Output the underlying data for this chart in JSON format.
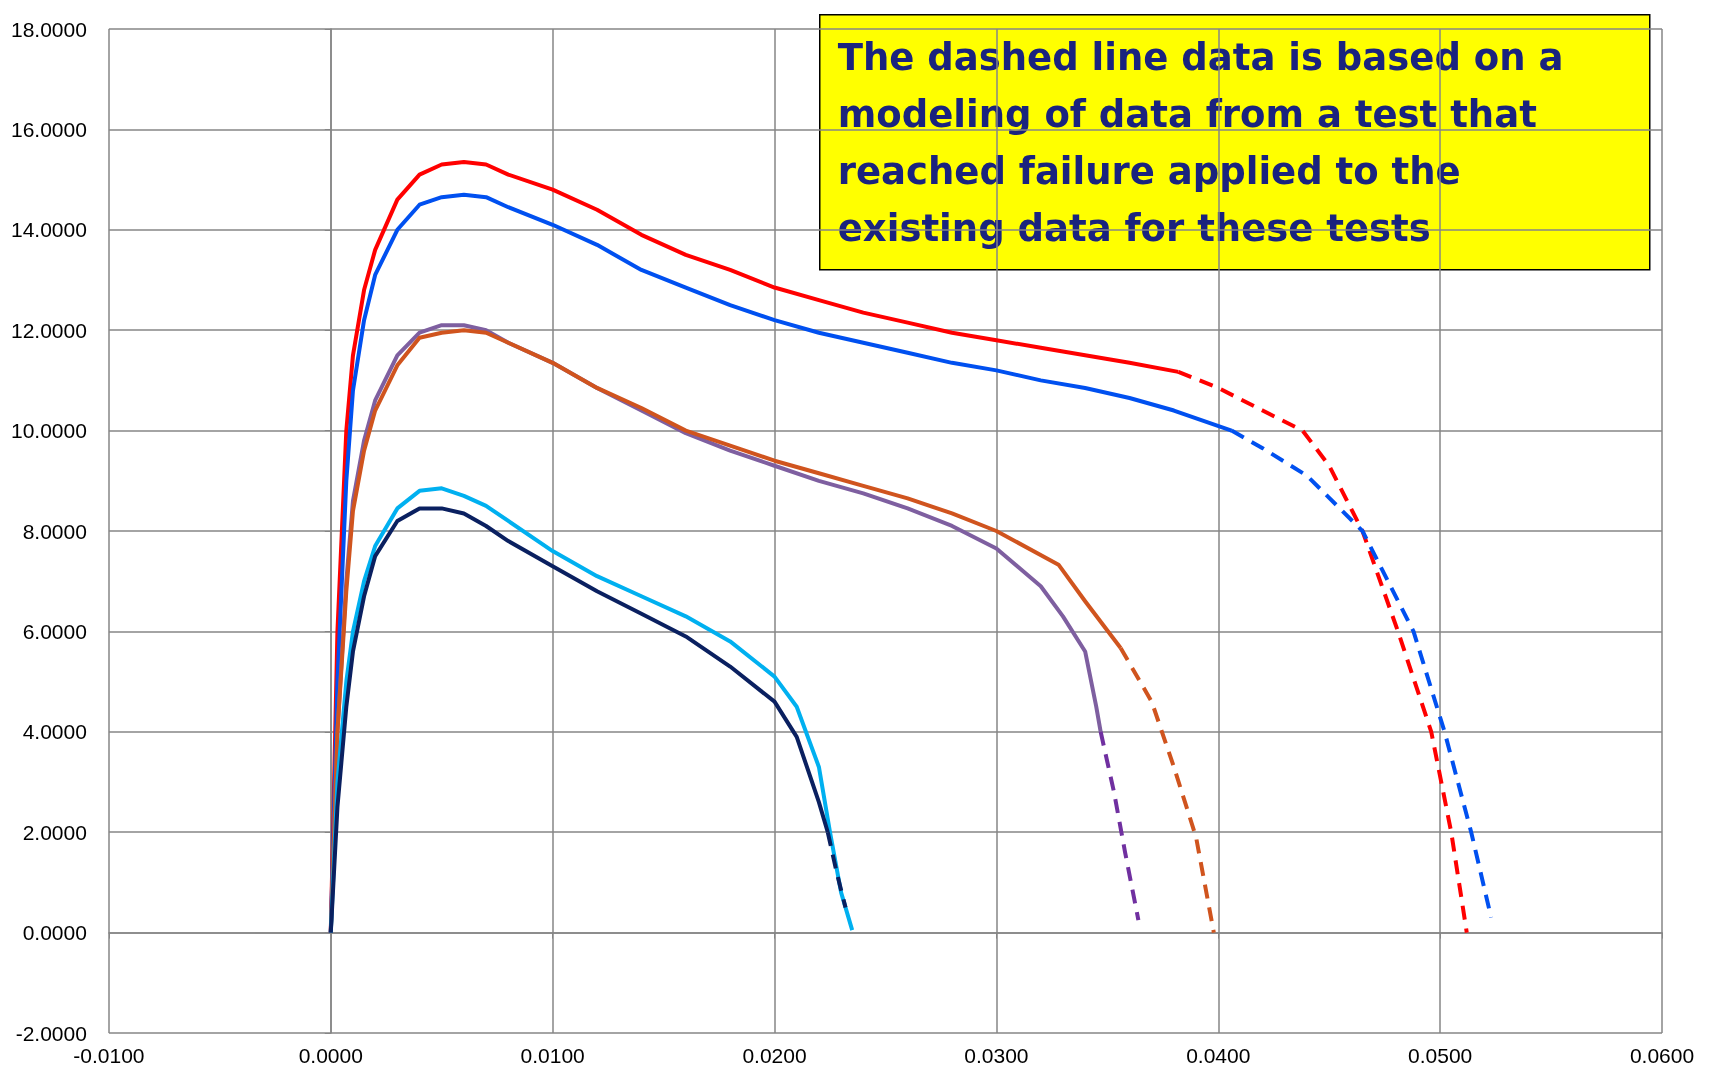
{
  "chart_data": {
    "type": "line",
    "annotations": [
      "The dashed line data is based on a modeling of data from a test that reached failure applied to the existing data for these tests"
    ],
    "xlim": [
      -0.01,
      0.06
    ],
    "xticks": [
      {
        "value": -0.01,
        "label": "-0.0100"
      },
      {
        "value": 0,
        "label": "0.0000"
      },
      {
        "value": 0.01,
        "label": "0.0100"
      },
      {
        "value": 0.02,
        "label": "0.0200"
      },
      {
        "value": 0.03,
        "label": "0.0300"
      },
      {
        "value": 0.04,
        "label": "0.0400"
      },
      {
        "value": 0.05,
        "label": "0.0500"
      },
      {
        "value": 0.06,
        "label": "0.0600"
      }
    ],
    "ylim": [
      -2,
      18
    ],
    "yticks": [
      {
        "value": -2,
        "label": "-2.0000"
      },
      {
        "value": 0,
        "label": "0.0000"
      },
      {
        "value": 2,
        "label": "2.0000"
      },
      {
        "value": 4,
        "label": "4.0000"
      },
      {
        "value": 6,
        "label": "6.0000"
      },
      {
        "value": 8,
        "label": "8.0000"
      },
      {
        "value": 10,
        "label": "10.0000"
      },
      {
        "value": 12,
        "label": "12.0000"
      },
      {
        "value": 14,
        "label": "14.0000"
      },
      {
        "value": 16,
        "label": "16.0000"
      },
      {
        "value": 18,
        "label": "18.0000"
      }
    ],
    "grid": true,
    "series": [
      {
        "color": "#ff0000",
        "line_style": "solid",
        "x": [
          0,
          0.0003,
          0.0007,
          0.001,
          0.0015,
          0.002,
          0.003,
          0.004,
          0.005,
          0.006,
          0.007,
          0.008,
          0.01,
          0.012,
          0.014,
          0.016,
          0.018,
          0.02,
          0.022,
          0.024,
          0.026,
          0.028,
          0.03,
          0.032,
          0.034,
          0.036,
          0.0382
        ],
        "values": [
          0,
          6,
          10,
          11.5,
          12.8,
          13.6,
          14.6,
          15.1,
          15.3,
          15.35,
          15.3,
          15.1,
          14.8,
          14.4,
          13.9,
          13.5,
          13.2,
          12.85,
          12.6,
          12.35,
          12.15,
          11.95,
          11.8,
          11.65,
          11.5,
          11.35,
          11.17
        ]
      },
      {
        "color": "#ff0000",
        "line_style": "dashed",
        "x": [
          0.0382,
          0.04,
          0.042,
          0.0438,
          0.045,
          0.0465,
          0.0481,
          0.0496,
          0.0505,
          0.0512
        ],
        "values": [
          11.17,
          10.85,
          10.4,
          10,
          9.3,
          8,
          6,
          4,
          2,
          0
        ]
      },
      {
        "color": "#0050f0",
        "line_style": "solid",
        "x": [
          0,
          0.0003,
          0.0007,
          0.001,
          0.0015,
          0.002,
          0.003,
          0.004,
          0.005,
          0.006,
          0.007,
          0.008,
          0.01,
          0.012,
          0.014,
          0.016,
          0.018,
          0.02,
          0.022,
          0.024,
          0.026,
          0.028,
          0.03,
          0.032,
          0.034,
          0.036,
          0.038,
          0.0406
        ],
        "values": [
          0,
          5,
          9,
          10.8,
          12.2,
          13.1,
          14,
          14.5,
          14.65,
          14.7,
          14.65,
          14.45,
          14.1,
          13.7,
          13.2,
          12.85,
          12.5,
          12.2,
          11.95,
          11.75,
          11.55,
          11.35,
          11.2,
          11,
          10.85,
          10.65,
          10.4,
          10
        ]
      },
      {
        "color": "#0050f0",
        "line_style": "dashed",
        "x": [
          0.0406,
          0.042,
          0.044,
          0.0465,
          0.0488,
          0.0502,
          0.0514,
          0.0523
        ],
        "values": [
          10,
          9.65,
          9.1,
          8,
          6,
          4,
          2,
          0.3
        ]
      },
      {
        "color": "#7e5fa0",
        "line_style": "solid",
        "x": [
          0,
          0.0003,
          0.0007,
          0.001,
          0.0015,
          0.002,
          0.003,
          0.004,
          0.005,
          0.006,
          0.007,
          0.008,
          0.01,
          0.012,
          0.014,
          0.016,
          0.018,
          0.02,
          0.022,
          0.024,
          0.026,
          0.028,
          0.03,
          0.032,
          0.033,
          0.034,
          0.0345,
          0.0347
        ],
        "values": [
          0,
          4,
          7,
          8.6,
          9.8,
          10.6,
          11.5,
          11.95,
          12.1,
          12.1,
          12,
          11.75,
          11.35,
          10.85,
          10.4,
          9.95,
          9.6,
          9.3,
          9,
          8.75,
          8.45,
          8.1,
          7.65,
          6.9,
          6.3,
          5.6,
          4.5,
          4
        ]
      },
      {
        "color": "#7030a0",
        "line_style": "dashed",
        "x": [
          0.0347,
          0.0353,
          0.0358,
          0.0362,
          0.0364
        ],
        "values": [
          4,
          2.8,
          1.6,
          0.7,
          0.25
        ]
      },
      {
        "color": "#d0541e",
        "line_style": "solid",
        "x": [
          0,
          0.0003,
          0.0007,
          0.001,
          0.0015,
          0.002,
          0.003,
          0.004,
          0.005,
          0.006,
          0.007,
          0.008,
          0.01,
          0.012,
          0.014,
          0.016,
          0.018,
          0.02,
          0.022,
          0.024,
          0.026,
          0.028,
          0.03,
          0.0328,
          0.034,
          0.0356
        ],
        "values": [
          0,
          4,
          6.8,
          8.4,
          9.6,
          10.4,
          11.3,
          11.85,
          11.95,
          12,
          11.95,
          11.75,
          11.35,
          10.85,
          10.45,
          10,
          9.7,
          9.4,
          9.15,
          8.9,
          8.65,
          8.35,
          8,
          7.33,
          6.6,
          5.67
        ]
      },
      {
        "color": "#d0541e",
        "line_style": "dashed",
        "x": [
          0.0356,
          0.037,
          0.038,
          0.039,
          0.0398
        ],
        "values": [
          5.67,
          4.6,
          3.3,
          1.9,
          0
        ]
      },
      {
        "color": "#00b0f0",
        "line_style": "solid",
        "x": [
          0,
          0.0003,
          0.0007,
          0.001,
          0.0015,
          0.002,
          0.003,
          0.004,
          0.005,
          0.006,
          0.007,
          0.008,
          0.01,
          0.012,
          0.014,
          0.016,
          0.018,
          0.02,
          0.021,
          0.022,
          0.0225,
          0.023,
          0.0235
        ],
        "values": [
          0,
          3,
          5,
          6,
          7,
          7.7,
          8.45,
          8.8,
          8.85,
          8.7,
          8.5,
          8.2,
          7.6,
          7.1,
          6.7,
          6.3,
          5.8,
          5.1,
          4.5,
          3.3,
          2,
          0.8,
          0.05
        ]
      },
      {
        "color": "#0a2060",
        "line_style": "solid",
        "x": [
          0,
          0.0003,
          0.0007,
          0.001,
          0.0015,
          0.002,
          0.003,
          0.004,
          0.005,
          0.006,
          0.007,
          0.008,
          0.01,
          0.012,
          0.014,
          0.016,
          0.018,
          0.02,
          0.021,
          0.022,
          0.0224
        ],
        "values": [
          0,
          2.5,
          4.5,
          5.6,
          6.7,
          7.5,
          8.2,
          8.45,
          8.45,
          8.35,
          8.1,
          7.8,
          7.3,
          6.8,
          6.35,
          5.9,
          5.3,
          4.6,
          3.9,
          2.6,
          2
        ]
      },
      {
        "color": "#0a2060",
        "line_style": "dashed",
        "x": [
          0.0224,
          0.0228,
          0.0232
        ],
        "values": [
          2,
          1.2,
          0.5
        ]
      }
    ]
  }
}
